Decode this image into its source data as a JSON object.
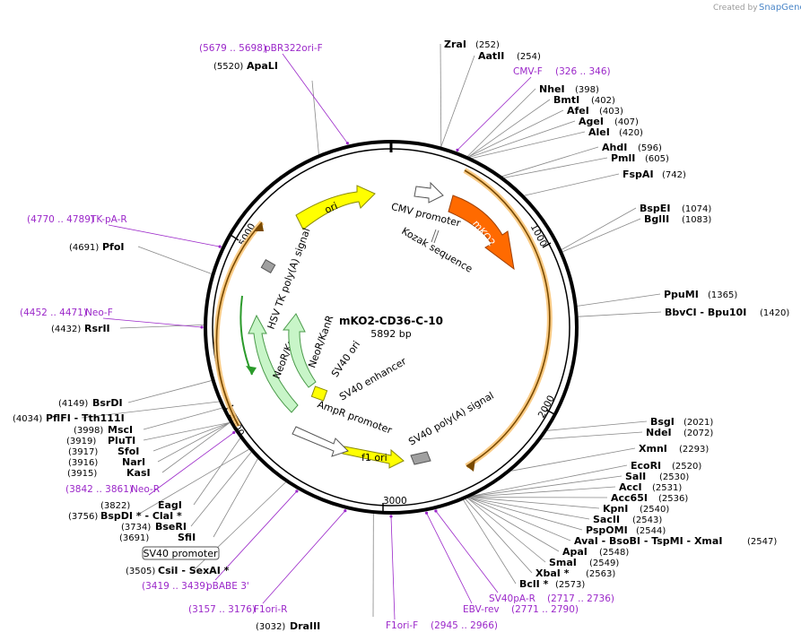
{
  "credit": {
    "prefix": "Created by",
    "brand": "SnapGene"
  },
  "plasmid": {
    "name": "mKO2-CD36-C-10",
    "length": "5892 bp"
  },
  "tick_labels": [
    "1000",
    "2000",
    "3000",
    "4000",
    "5000"
  ],
  "features": {
    "mko2": "mKO2",
    "ori": "ori",
    "f1_ori": "f1 ori",
    "neor_outer": "NeoR/KanR",
    "neor_inner": "NeoR/KanR",
    "cmv_promoter": "CMV promoter",
    "kozak": "Kozak sequence",
    "hsv_tk": "HSV TK poly(A) signal",
    "sv40_ori": "SV40 ori",
    "sv40_enhancer": "SV40 enhancer",
    "ampr_promoter": "AmpR promoter",
    "sv40_polya": "SV40 poly(A) signal",
    "sv40_promoter_box": "SV40 promoter"
  },
  "sites_right": [
    {
      "name": "ZraI",
      "pos": "(252)"
    },
    {
      "name": "AatII",
      "pos": "(254)"
    },
    {
      "name": "NheI",
      "pos": "(398)"
    },
    {
      "name": "BmtI",
      "pos": "(402)"
    },
    {
      "name": "AfeI",
      "pos": "(403)"
    },
    {
      "name": "AgeI",
      "pos": "(407)"
    },
    {
      "name": "AleI",
      "pos": "(420)"
    },
    {
      "name": "AhdI",
      "pos": "(596)"
    },
    {
      "name": "PmlI",
      "pos": "(605)"
    },
    {
      "name": "FspAI",
      "pos": "(742)"
    },
    {
      "name": "BspEI",
      "pos": "(1074)"
    },
    {
      "name": "BglII",
      "pos": "(1083)"
    },
    {
      "name": "PpuMI",
      "pos": "(1365)"
    },
    {
      "name": "BbvCI  -  Bpu10I",
      "pos": "(1420)"
    },
    {
      "name": "BsgI",
      "pos": "(2021)"
    },
    {
      "name": "NdeI",
      "pos": "(2072)"
    },
    {
      "name": "XmnI",
      "pos": "(2293)"
    },
    {
      "name": "EcoRI",
      "pos": "(2520)"
    },
    {
      "name": "SalI",
      "pos": "(2530)"
    },
    {
      "name": "AccI",
      "pos": "(2531)"
    },
    {
      "name": "Acc65I",
      "pos": "(2536)"
    },
    {
      "name": "KpnI",
      "pos": "(2540)"
    },
    {
      "name": "SacII",
      "pos": "(2543)"
    },
    {
      "name": "PspOMI",
      "pos": "(2544)"
    },
    {
      "name": "AvaI  -  BsoBI  -  TspMI  -  XmaI",
      "pos": "(2547)"
    },
    {
      "name": "ApaI",
      "pos": "(2548)"
    },
    {
      "name": "SmaI",
      "pos": "(2549)"
    },
    {
      "name": "XbaI *",
      "pos": "(2563)"
    },
    {
      "name": "BclI *",
      "pos": "(2573)"
    }
  ],
  "sites_left": [
    {
      "name": "ApaLI",
      "pos": "(5520)"
    },
    {
      "name": "PfoI",
      "pos": "(4691)"
    },
    {
      "name": "RsrII",
      "pos": "(4432)"
    },
    {
      "name": "BsrDI",
      "pos": "(4149)"
    },
    {
      "name": "PflFI  -  Tth111I",
      "pos": "(4034)"
    },
    {
      "name": "MscI",
      "pos": "(3998)"
    },
    {
      "name": "PluTI",
      "pos": "(3919)"
    },
    {
      "name": "SfoI",
      "pos": "(3917)"
    },
    {
      "name": "NarI",
      "pos": "(3916)"
    },
    {
      "name": "KasI",
      "pos": "(3915)"
    },
    {
      "name": "EagI",
      "pos": "(3822)"
    },
    {
      "name": "BspDI *  -  ClaI *",
      "pos": "(3756)"
    },
    {
      "name": "BseRI",
      "pos": "(3734)"
    },
    {
      "name": "SfiI",
      "pos": "(3691)"
    },
    {
      "name": "CsiI  -  SexAI *",
      "pos": "(3505)"
    },
    {
      "name": "DraIII",
      "pos": "(3032)"
    }
  ],
  "primers": [
    {
      "name": "pBR322ori-F",
      "range": "(5679 .. 5698)"
    },
    {
      "name": "CMV-F",
      "range": "(326 .. 346)"
    },
    {
      "name": "TK-pA-R",
      "range": "(4770 .. 4789)"
    },
    {
      "name": "Neo-F",
      "range": "(4452 .. 4471)"
    },
    {
      "name": "Neo-R",
      "range": "(3842 .. 3861)"
    },
    {
      "name": "pBABE 3'",
      "range": "(3419 .. 3439)"
    },
    {
      "name": "F1ori-R",
      "range": "(3157 .. 3176)"
    },
    {
      "name": "F1ori-F",
      "range": "(2945 .. 2966)"
    },
    {
      "name": "EBV-rev",
      "range": "(2771 .. 2790)"
    },
    {
      "name": "SV40pA-R",
      "range": "(2717 .. 2736)"
    }
  ],
  "colors": {
    "backbone": "#000000",
    "mko2": "#ff6a00",
    "ori": "#ffff00",
    "neor": "#c8f5c8",
    "promoter": "#ffffff",
    "polya": "#a0a0a0",
    "orf_highlight": "#f9c77a",
    "primer": "#9b28c9",
    "orf_line": "#7a4a00",
    "green_orf": "#2a9a2a"
  }
}
